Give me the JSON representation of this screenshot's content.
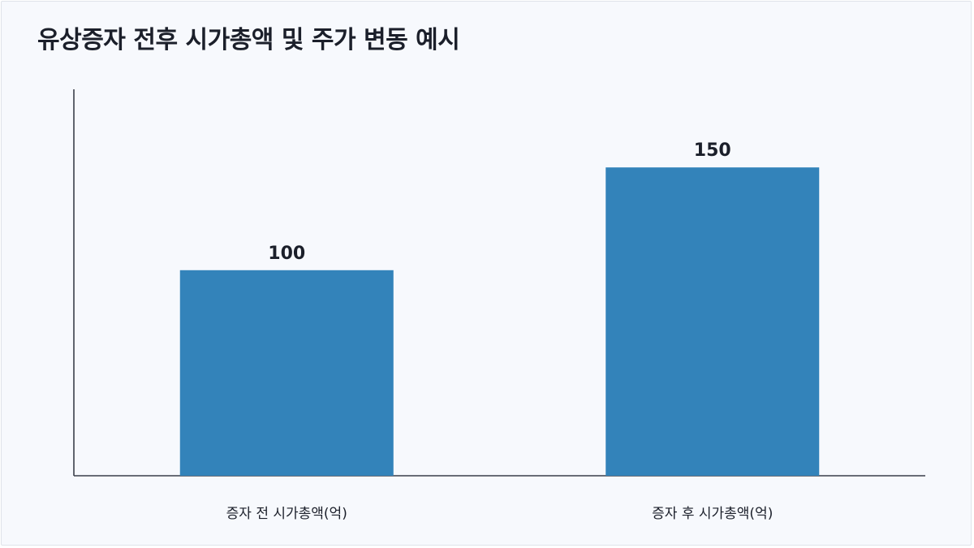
{
  "chart_data": {
    "type": "bar",
    "title": "유상증자 전후 시가총액 및 주가 변동 예시",
    "categories": [
      "증자 전 시가총액(억)",
      "증자 후 시가총액(억)"
    ],
    "values": [
      100,
      150
    ],
    "value_labels": [
      "100",
      "150"
    ],
    "xlabel": "",
    "ylabel": "",
    "ylim": [
      0,
      188
    ],
    "grid": false,
    "bar_color": "#3383ba",
    "axis_color": "#3a3f4b",
    "background": "#f7f9fd"
  }
}
